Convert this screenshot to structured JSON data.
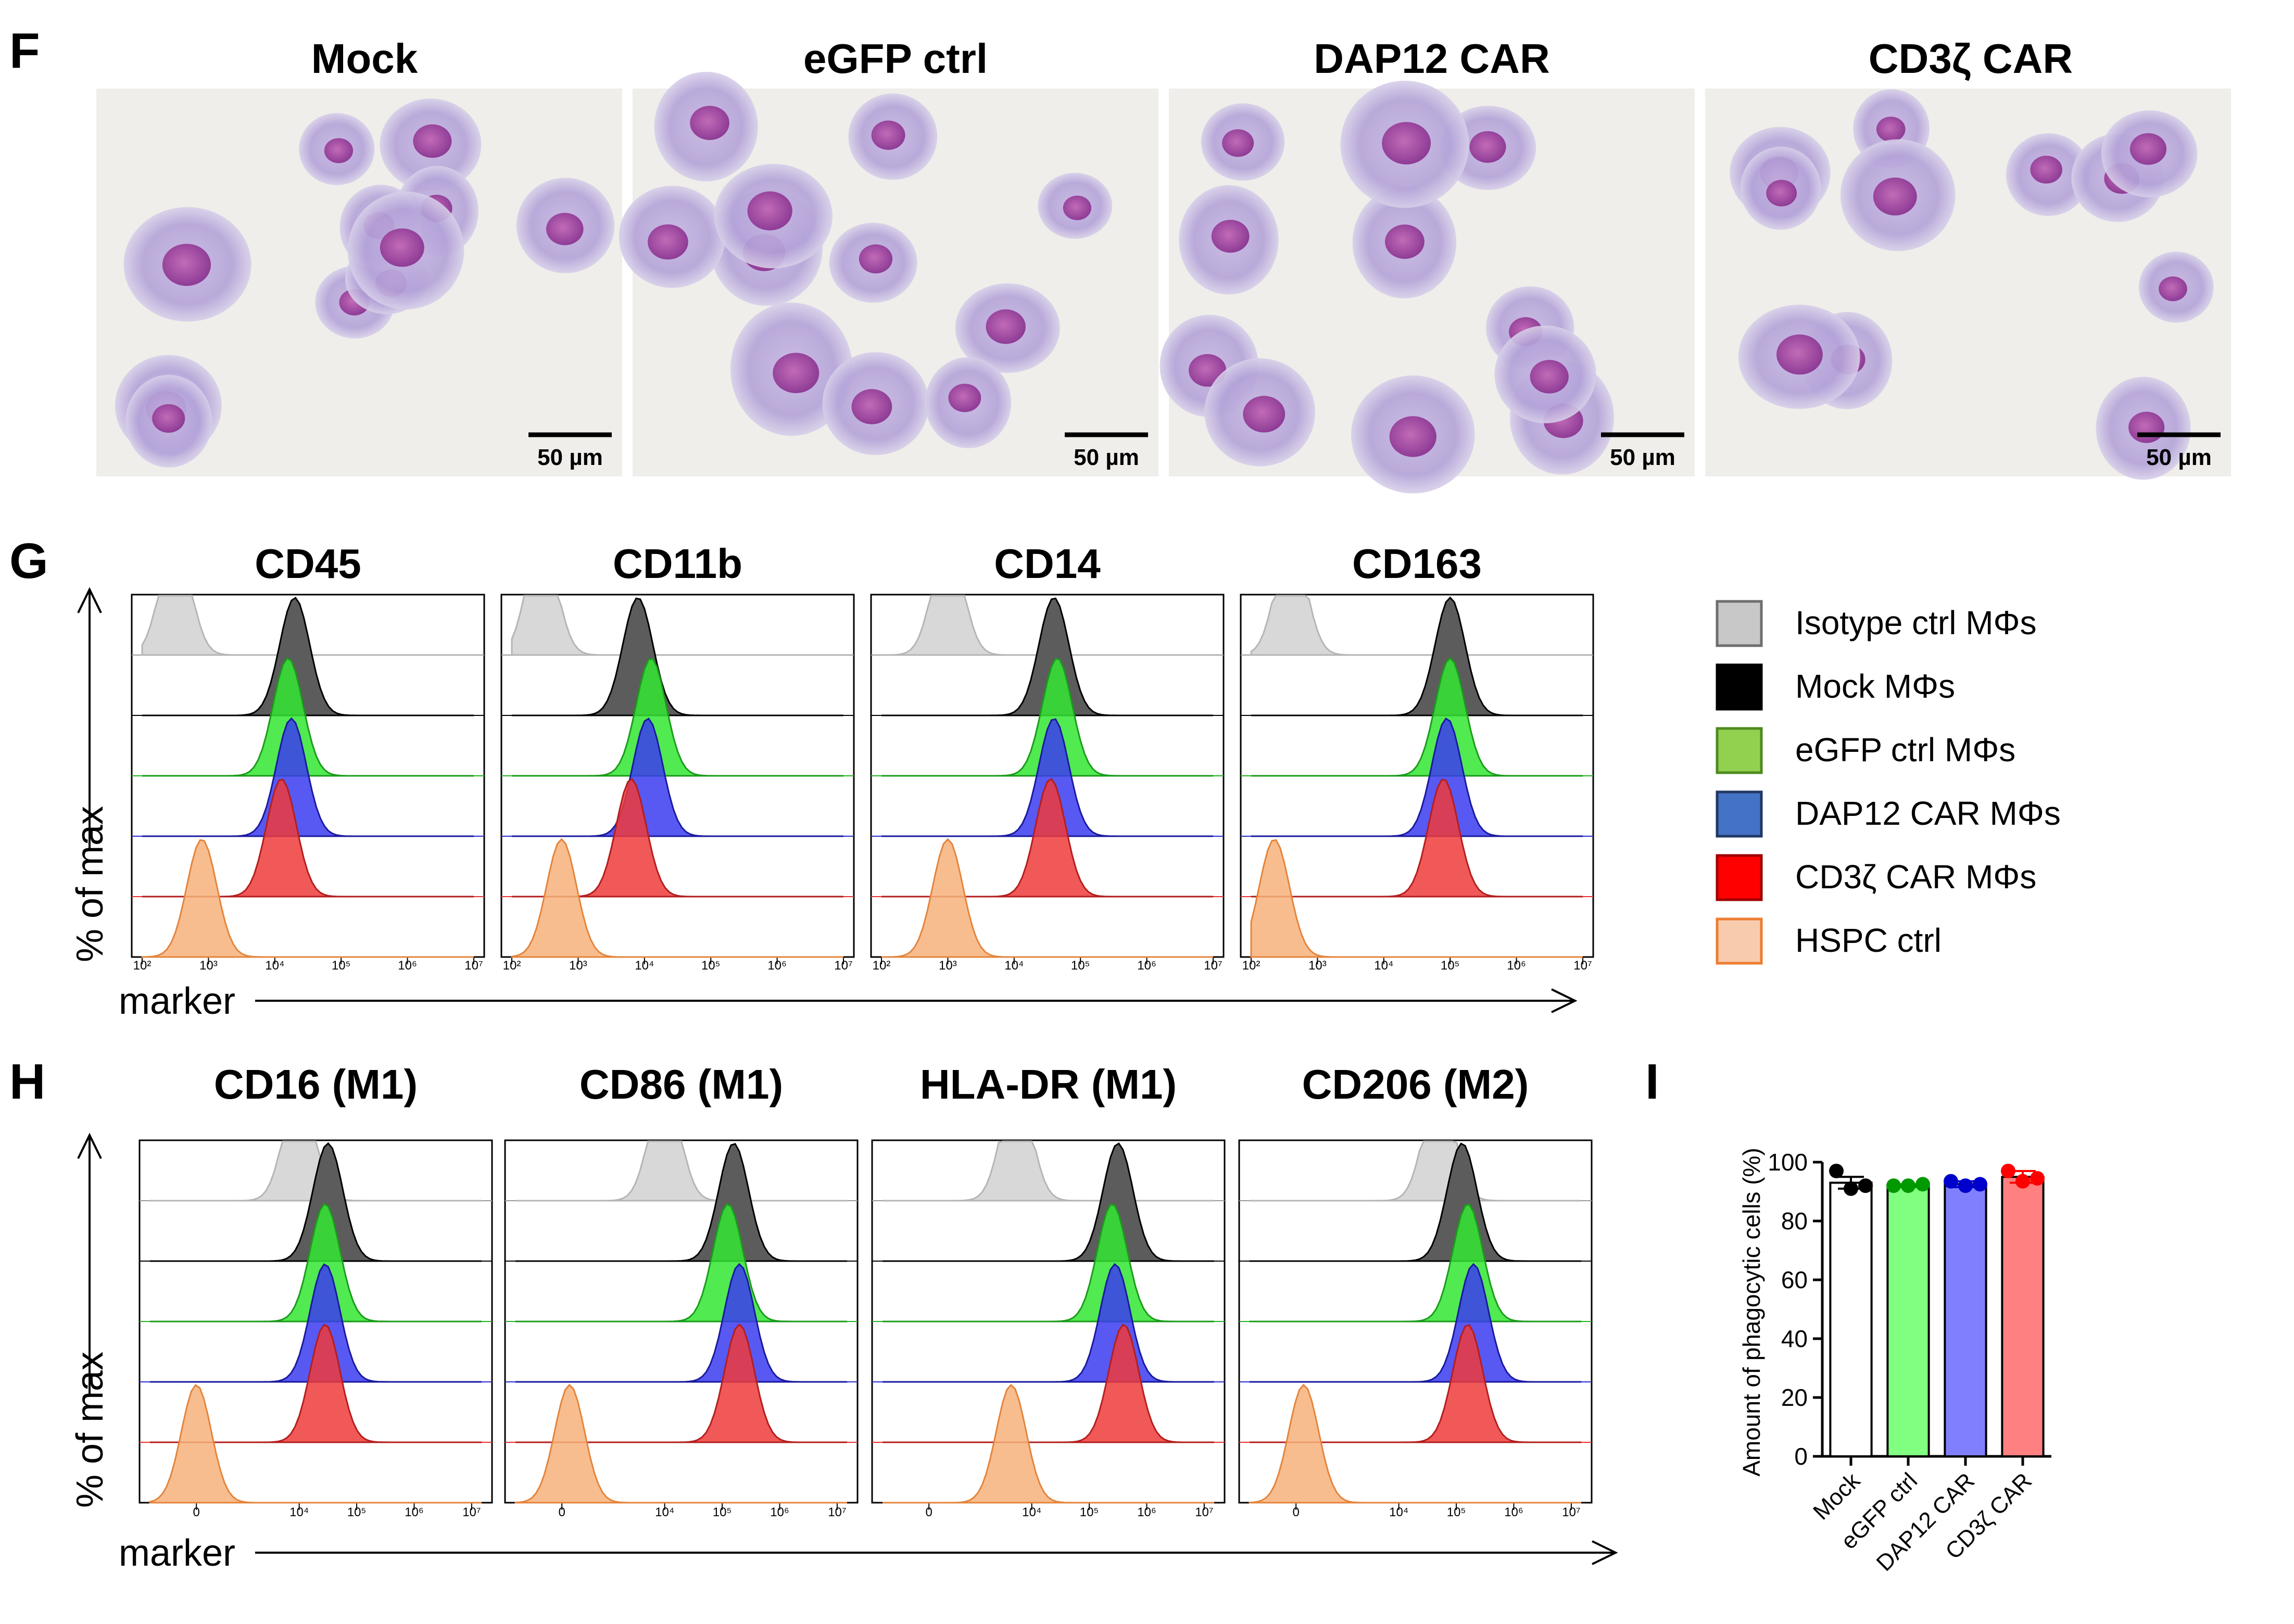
{
  "panel_f": {
    "letter": "F",
    "micrographs": [
      {
        "title": "Mock",
        "scale_bar": "50 µm"
      },
      {
        "title": "eGFP ctrl",
        "scale_bar": "50 µm"
      },
      {
        "title": "DAP12 CAR",
        "scale_bar": "50 µm"
      },
      {
        "title": "CD3ζ CAR",
        "scale_bar": "50 µm"
      }
    ]
  },
  "panel_g": {
    "letter": "G",
    "y_axis_label": "% of max",
    "x_axis_label": "marker",
    "plots": [
      {
        "title": "CD45",
        "ticks": [
          "10²",
          "10³",
          "10⁴",
          "10⁵",
          "10⁶",
          "10⁷"
        ],
        "peaks": [
          2.5,
          4.3,
          4.2,
          4.25,
          4.1,
          2.9
        ]
      },
      {
        "title": "CD11b",
        "ticks": [
          "10²",
          "10³",
          "10⁴",
          "10⁵",
          "10⁶",
          "10⁷"
        ],
        "peaks": [
          2.45,
          3.9,
          4.1,
          4.05,
          3.8,
          2.75
        ]
      },
      {
        "title": "CD14",
        "ticks": [
          "10²",
          "10³",
          "10⁴",
          "10⁵",
          "10⁶",
          "10⁷"
        ],
        "peaks": [
          3.0,
          4.6,
          4.65,
          4.6,
          4.55,
          3.0
        ]
      },
      {
        "title": "CD163",
        "ticks": [
          "10²",
          "10³",
          "10⁴",
          "10⁵",
          "10⁶",
          "10⁷"
        ],
        "peaks": [
          2.6,
          5.0,
          5.0,
          4.95,
          4.9,
          2.35
        ]
      }
    ]
  },
  "legend": {
    "items": [
      {
        "label": "Isotype ctrl MΦs",
        "color": "#c8c8c8",
        "border": "#6e6e6e"
      },
      {
        "label": "Mock MΦs",
        "color": "#000000",
        "border": "#000000"
      },
      {
        "label": "eGFP ctrl MΦs",
        "color": "#92d050",
        "border": "#4e8a1e"
      },
      {
        "label": "DAP12 CAR MΦs",
        "color": "#4472c4",
        "border": "#203864"
      },
      {
        "label": "CD3ζ CAR MΦs",
        "color": "#ff0000",
        "border": "#a00000"
      },
      {
        "label": "HSPC ctrl",
        "color": "#f8cbad",
        "border": "#ed7d31"
      }
    ]
  },
  "panel_h": {
    "letter": "H",
    "y_axis_label": "% of max",
    "x_axis_label": "marker",
    "plots": [
      {
        "title": "CD16 (M1)",
        "ticks": [
          "0",
          "10⁴",
          "10⁵",
          "10⁶",
          "10⁷"
        ],
        "peaks": [
          4.0,
          4.5,
          4.45,
          4.45,
          4.45,
          0.0
        ]
      },
      {
        "title": "CD86 (M1)",
        "ticks": [
          "0",
          "10⁴",
          "10⁵",
          "10⁶",
          "10⁷"
        ],
        "peaks": [
          4.0,
          5.2,
          5.1,
          5.3,
          5.3,
          0.3
        ]
      },
      {
        "title": "HLA-DR (M1)",
        "ticks": [
          "0",
          "10⁴",
          "10⁵",
          "10⁶",
          "10⁷"
        ],
        "peaks": [
          3.4,
          5.5,
          5.4,
          5.45,
          5.6,
          3.2
        ]
      },
      {
        "title": "CD206 (M2)",
        "ticks": [
          "0",
          "10⁴",
          "10⁵",
          "10⁶",
          "10⁷"
        ],
        "peaks": [
          4.7,
          5.1,
          5.2,
          5.3,
          5.2,
          0.3
        ]
      }
    ]
  },
  "panel_i": {
    "letter": "I"
  },
  "chart_data": {
    "type": "bar",
    "title": "",
    "xlabel": "",
    "ylabel": "Amount of phagocytic cells (%)",
    "ylim": [
      0,
      100
    ],
    "yticks": [
      "0",
      "20",
      "40",
      "60",
      "80",
      "100"
    ],
    "categories": [
      "Mock",
      "eGFP ctrl",
      "DAP12 CAR",
      "CD3ζ CAR"
    ],
    "values": [
      93,
      92,
      92.5,
      95
    ],
    "sem": [
      2,
      0.5,
      1,
      2
    ],
    "points": [
      [
        97,
        91,
        92
      ],
      [
        92,
        92,
        92.5
      ],
      [
        93.5,
        92,
        92.5
      ],
      [
        97,
        93.5,
        94.5
      ]
    ],
    "colors": [
      "#ffffff",
      "#80ff80",
      "#8080ff",
      "#ff8080"
    ],
    "point_colors": [
      "#000000",
      "#009900",
      "#0000cc",
      "#ff0000"
    ]
  }
}
